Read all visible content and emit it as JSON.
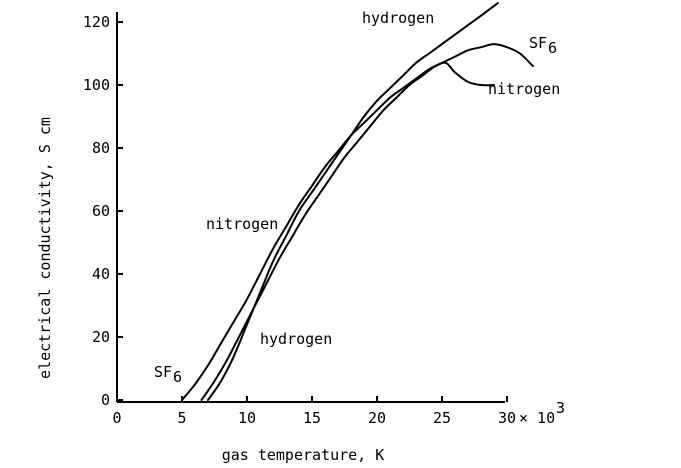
{
  "chart_data": {
    "type": "line",
    "title": "",
    "xlabel": "gas temperature, K",
    "ylabel": "electrical conductivity, S cm",
    "x_scale_label": "× 10",
    "x_scale_exponent": "3",
    "xlim": [
      0,
      30
    ],
    "ylim": [
      0,
      120
    ],
    "x_ticks": [
      0,
      5,
      10,
      15,
      20,
      25,
      30
    ],
    "y_ticks": [
      0,
      20,
      40,
      60,
      80,
      100,
      120
    ],
    "grid": false,
    "series": [
      {
        "name": "hydrogen",
        "label_near_end": "hydrogen",
        "label_near_start": "hydrogen",
        "x": [
          7.0,
          8.0,
          9.0,
          10.0,
          11.0,
          12.0,
          13.0,
          14.0,
          15.0,
          16.0,
          17.0,
          18.0,
          19.0,
          20.0,
          21.0,
          22.0,
          23.0,
          24.0,
          25.0,
          26.0,
          27.0,
          28.0,
          29.3
        ],
        "y": [
          0,
          6,
          14,
          24,
          34,
          44,
          52,
          60,
          66,
          72,
          78,
          84,
          90,
          95,
          99,
          103,
          107,
          110,
          113,
          116,
          119,
          122,
          126
        ]
      },
      {
        "name": "nitrogen",
        "label_near_end": "nitrogen",
        "label_near_start": "nitrogen",
        "x": [
          6.5,
          7.5,
          8.5,
          9.5,
          10.5,
          11.5,
          12.5,
          13.5,
          14.5,
          15.5,
          16.5,
          17.5,
          18.5,
          19.5,
          20.5,
          21.5,
          22.5,
          23.5,
          24.5,
          25.3,
          26.0,
          27.0,
          28.0,
          29.0
        ],
        "y": [
          0,
          6,
          13,
          21,
          29,
          37,
          45,
          52,
          59,
          65,
          71,
          77,
          82,
          87,
          92,
          96,
          100,
          103,
          106,
          107,
          104,
          101,
          100,
          100
        ]
      },
      {
        "name": "SF6",
        "label_near_end": "SF",
        "label_near_start": "SF",
        "label_subscript": "6",
        "x": [
          5.0,
          6.0,
          7.0,
          8.0,
          9.0,
          10.0,
          11.0,
          12.0,
          13.0,
          14.0,
          15.0,
          16.0,
          17.0,
          18.0,
          19.0,
          20.0,
          21.0,
          22.0,
          23.0,
          24.0,
          25.0,
          26.0,
          27.0,
          28.0,
          29.0,
          30.0,
          31.0,
          32.0
        ],
        "y": [
          0,
          5,
          11,
          18,
          25,
          32,
          40,
          48,
          55,
          62,
          68,
          74,
          79,
          84,
          88,
          92,
          96,
          99,
          102,
          105,
          107,
          109,
          111,
          112,
          113,
          112,
          110,
          106
        ]
      }
    ]
  }
}
